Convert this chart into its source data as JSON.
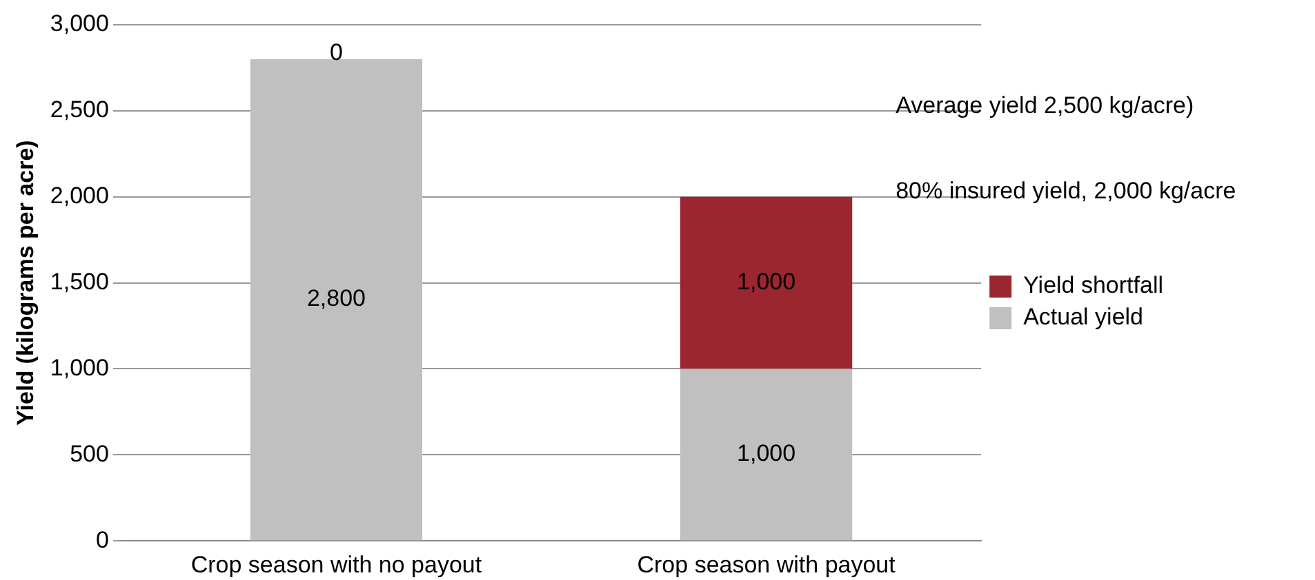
{
  "chart_data": {
    "type": "bar",
    "stacked": true,
    "ylabel": "Yield (kilograms per acre)",
    "categories": [
      "Crop season with no payout",
      "Crop season with payout"
    ],
    "series": [
      {
        "name": "Actual yield",
        "color": "#c0c0c0",
        "values": [
          2800,
          1000
        ],
        "value_labels": [
          "2,800",
          "1,000"
        ]
      },
      {
        "name": "Yield shortfall",
        "color": "#9b2630",
        "values": [
          0,
          1000
        ],
        "value_labels": [
          "0",
          "1,000"
        ]
      }
    ],
    "ylim": [
      0,
      3000
    ],
    "yticks": [
      {
        "value": 0,
        "label": "0"
      },
      {
        "value": 500,
        "label": "500"
      },
      {
        "value": 1000,
        "label": "1,000"
      },
      {
        "value": 1500,
        "label": "1,500"
      },
      {
        "value": 2000,
        "label": "2,000"
      },
      {
        "value": 2500,
        "label": "2,500"
      },
      {
        "value": 3000,
        "label": "3,000"
      }
    ],
    "grid": "y",
    "legend": "right",
    "annotations": [
      "Average yield 2,500 kg/acre)",
      "80% insured yield, 2,000 kg/acre"
    ]
  }
}
